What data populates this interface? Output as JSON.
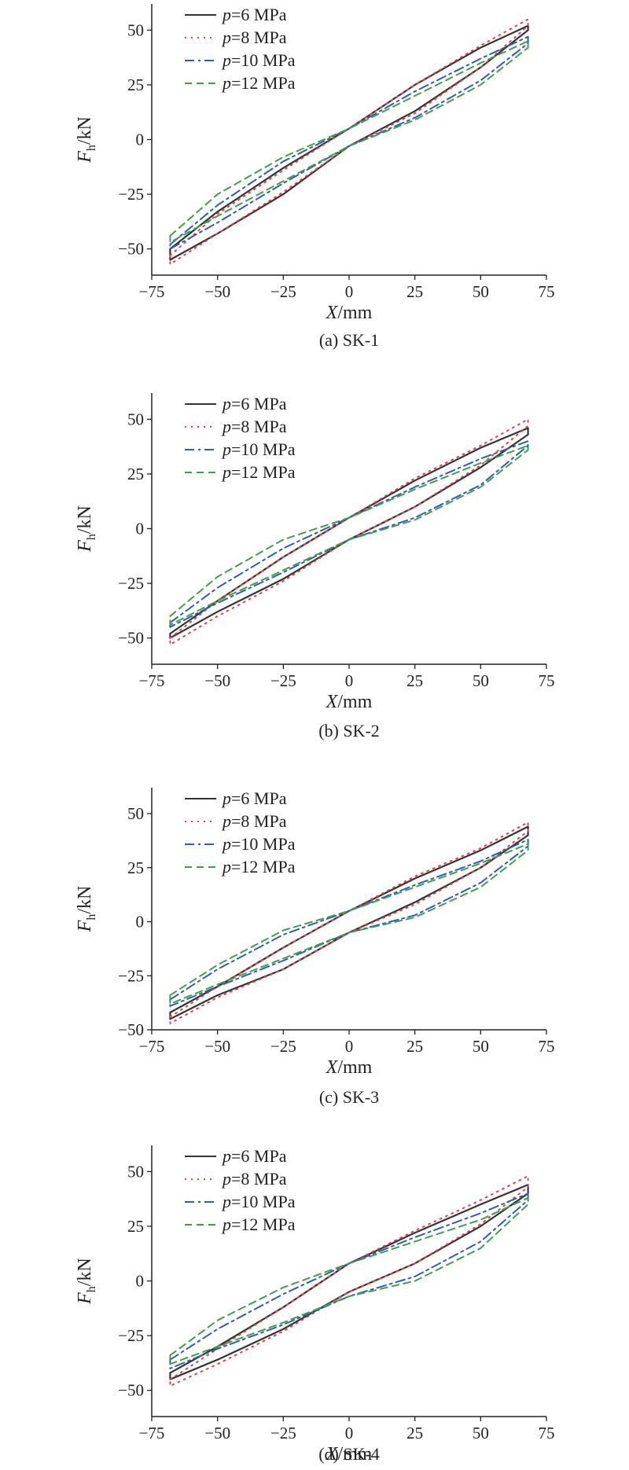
{
  "chart_data": [
    {
      "type": "line",
      "caption": "(a) SK-1",
      "xlabel": "X/mm",
      "ylabel": "F_h/kN",
      "xlim": [
        -75,
        75
      ],
      "ylim": [
        -62,
        62
      ],
      "xticks": [
        -75,
        -50,
        -25,
        0,
        25,
        50,
        75
      ],
      "yticks": [
        -50,
        -25,
        0,
        25,
        50
      ],
      "series": [
        {
          "name": "p=6 MPa",
          "color": "#333333",
          "dash": "solid",
          "upper_x": [
            -68,
            -50,
            -25,
            0,
            25,
            50,
            68
          ],
          "upper_y": [
            -50,
            -33,
            -13,
            5,
            25,
            42,
            52
          ],
          "lower_x": [
            68,
            50,
            25,
            0,
            -25,
            -50,
            -68
          ],
          "lower_y": [
            50,
            33,
            13,
            -3,
            -25,
            -43,
            -55
          ]
        },
        {
          "name": "p=8 MPa",
          "color": "#e8414d",
          "dash": "dotted",
          "upper_x": [
            -68,
            -50,
            -25,
            0,
            25,
            50,
            68
          ],
          "upper_y": [
            -53,
            -34,
            -14,
            5,
            25,
            43,
            55
          ],
          "lower_x": [
            68,
            50,
            25,
            0,
            -25,
            -50,
            -68
          ],
          "lower_y": [
            52,
            33,
            12,
            -3,
            -24,
            -43,
            -57
          ]
        },
        {
          "name": "p=10 MPa",
          "color": "#2f5fa7",
          "dash": "dashdot",
          "upper_x": [
            -68,
            -50,
            -25,
            0,
            25,
            50,
            68
          ],
          "upper_y": [
            -48,
            -30,
            -10,
            5,
            22,
            37,
            47
          ],
          "lower_x": [
            68,
            50,
            25,
            0,
            -25,
            -50,
            -68
          ],
          "lower_y": [
            44,
            27,
            10,
            -3,
            -20,
            -38,
            -50
          ]
        },
        {
          "name": "p=12 MPa",
          "color": "#3f9e4f",
          "dash": "dashed",
          "upper_x": [
            -68,
            -50,
            -25,
            0,
            25,
            50,
            68
          ],
          "upper_y": [
            -44,
            -25,
            -8,
            5,
            20,
            35,
            45
          ],
          "lower_x": [
            68,
            50,
            25,
            0,
            -25,
            -50,
            -68
          ],
          "lower_y": [
            42,
            25,
            9,
            -3,
            -19,
            -35,
            -47
          ]
        }
      ]
    },
    {
      "type": "line",
      "caption": "(b) SK-2",
      "xlabel": "X/mm",
      "ylabel": "F_h/kN",
      "xlim": [
        -75,
        75
      ],
      "ylim": [
        -62,
        62
      ],
      "xticks": [
        -75,
        -50,
        -25,
        0,
        25,
        50,
        75
      ],
      "yticks": [
        -50,
        -25,
        0,
        25,
        50
      ],
      "series": [
        {
          "name": "p=6 MPa",
          "color": "#333333",
          "dash": "solid",
          "upper_x": [
            -68,
            -50,
            -25,
            0,
            25,
            50,
            68
          ],
          "upper_y": [
            -48,
            -33,
            -13,
            5,
            22,
            37,
            46
          ],
          "lower_x": [
            68,
            50,
            25,
            0,
            -25,
            -50,
            -68
          ],
          "lower_y": [
            43,
            28,
            10,
            -5,
            -23,
            -38,
            -50
          ]
        },
        {
          "name": "p=8 MPa",
          "color": "#e8414d",
          "dash": "dotted",
          "upper_x": [
            -68,
            -50,
            -25,
            0,
            25,
            50,
            68
          ],
          "upper_y": [
            -50,
            -33,
            -13,
            5,
            23,
            38,
            50
          ],
          "lower_x": [
            68,
            50,
            25,
            0,
            -25,
            -50,
            -68
          ],
          "lower_y": [
            47,
            29,
            10,
            -5,
            -24,
            -40,
            -53
          ]
        },
        {
          "name": "p=10 MPa",
          "color": "#2f5fa7",
          "dash": "dashdot",
          "upper_x": [
            -68,
            -50,
            -25,
            0,
            25,
            50,
            68
          ],
          "upper_y": [
            -43,
            -27,
            -9,
            5,
            19,
            32,
            40
          ],
          "lower_x": [
            68,
            50,
            25,
            0,
            -25,
            -50,
            -68
          ],
          "lower_y": [
            38,
            20,
            5,
            -5,
            -20,
            -34,
            -45
          ]
        },
        {
          "name": "p=12 MPa",
          "color": "#3f9e4f",
          "dash": "dashed",
          "upper_x": [
            -68,
            -50,
            -25,
            0,
            25,
            50,
            68
          ],
          "upper_y": [
            -40,
            -22,
            -5,
            5,
            18,
            30,
            38
          ],
          "lower_x": [
            68,
            50,
            25,
            0,
            -25,
            -50,
            -68
          ],
          "lower_y": [
            36,
            19,
            4,
            -5,
            -19,
            -33,
            -44
          ]
        }
      ]
    },
    {
      "type": "line",
      "caption": "(c) SK-3",
      "xlabel": "X/mm",
      "ylabel": "F_h/kN",
      "xlim": [
        -75,
        75
      ],
      "ylim": [
        -50,
        62
      ],
      "xticks": [
        -75,
        -50,
        -25,
        0,
        25,
        50,
        75
      ],
      "yticks": [
        -50,
        -25,
        0,
        25,
        50
      ],
      "series": [
        {
          "name": "p=6 MPa",
          "color": "#333333",
          "dash": "solid",
          "upper_x": [
            -68,
            -50,
            -25,
            0,
            25,
            50,
            68
          ],
          "upper_y": [
            -42,
            -30,
            -12,
            5,
            20,
            33,
            44
          ],
          "lower_x": [
            68,
            50,
            25,
            0,
            -25,
            -50,
            -68
          ],
          "lower_y": [
            40,
            25,
            9,
            -5,
            -22,
            -34,
            -45
          ]
        },
        {
          "name": "p=8 MPa",
          "color": "#e8414d",
          "dash": "dotted",
          "upper_x": [
            -68,
            -50,
            -25,
            0,
            25,
            50,
            68
          ],
          "upper_y": [
            -44,
            -30,
            -12,
            5,
            21,
            34,
            46
          ],
          "lower_x": [
            68,
            50,
            25,
            0,
            -25,
            -50,
            -68
          ],
          "lower_y": [
            42,
            25,
            8,
            -5,
            -22,
            -35,
            -47
          ]
        },
        {
          "name": "p=10 MPa",
          "color": "#2f5fa7",
          "dash": "dashdot",
          "upper_x": [
            -68,
            -50,
            -25,
            0,
            25,
            50,
            68
          ],
          "upper_y": [
            -36,
            -22,
            -6,
            5,
            17,
            28,
            38
          ],
          "lower_x": [
            68,
            50,
            25,
            0,
            -25,
            -50,
            -68
          ],
          "lower_y": [
            35,
            18,
            3,
            -5,
            -18,
            -30,
            -39
          ]
        },
        {
          "name": "p=12 MPa",
          "color": "#3f9e4f",
          "dash": "dashed",
          "upper_x": [
            -68,
            -50,
            -25,
            0,
            25,
            50,
            68
          ],
          "upper_y": [
            -34,
            -20,
            -4,
            5,
            16,
            27,
            36
          ],
          "lower_x": [
            68,
            50,
            25,
            0,
            -25,
            -50,
            -68
          ],
          "lower_y": [
            33,
            16,
            2,
            -5,
            -17,
            -29,
            -38
          ]
        }
      ]
    },
    {
      "type": "line",
      "caption": "(d) SK-4",
      "xlabel": "X/mm",
      "ylabel": "F_h/kN",
      "xlim": [
        -75,
        75
      ],
      "ylim": [
        -62,
        62
      ],
      "xticks": [
        -75,
        -50,
        -25,
        0,
        25,
        50,
        75
      ],
      "yticks": [
        -50,
        -25,
        0,
        25,
        50
      ],
      "series": [
        {
          "name": "p=6 MPa",
          "color": "#333333",
          "dash": "solid",
          "upper_x": [
            -68,
            -50,
            -25,
            0,
            25,
            50,
            68
          ],
          "upper_y": [
            -42,
            -30,
            -12,
            8,
            22,
            35,
            44
          ],
          "lower_x": [
            68,
            50,
            25,
            0,
            -25,
            -50,
            -68
          ],
          "lower_y": [
            40,
            25,
            8,
            -5,
            -22,
            -36,
            -45
          ]
        },
        {
          "name": "p=8 MPa",
          "color": "#e8414d",
          "dash": "dotted",
          "upper_x": [
            -68,
            -50,
            -25,
            0,
            25,
            50,
            68
          ],
          "upper_y": [
            -45,
            -31,
            -12,
            8,
            23,
            37,
            48
          ],
          "lower_x": [
            68,
            50,
            25,
            0,
            -25,
            -50,
            -68
          ],
          "lower_y": [
            43,
            26,
            8,
            -5,
            -23,
            -38,
            -48
          ]
        },
        {
          "name": "p=10 MPa",
          "color": "#2f5fa7",
          "dash": "dashdot",
          "upper_x": [
            -68,
            -50,
            -25,
            0,
            25,
            50,
            68
          ],
          "upper_y": [
            -36,
            -22,
            -6,
            8,
            20,
            31,
            40
          ],
          "lower_x": [
            68,
            50,
            25,
            0,
            -25,
            -50,
            -68
          ],
          "lower_y": [
            37,
            18,
            2,
            -7,
            -20,
            -31,
            -40
          ]
        },
        {
          "name": "p=12 MPa",
          "color": "#3f9e4f",
          "dash": "dashed",
          "upper_x": [
            -68,
            -50,
            -25,
            0,
            25,
            50,
            68
          ],
          "upper_y": [
            -34,
            -18,
            -3,
            8,
            18,
            28,
            38
          ],
          "lower_x": [
            68,
            50,
            25,
            0,
            -25,
            -50,
            -68
          ],
          "lower_y": [
            35,
            15,
            0,
            -7,
            -19,
            -30,
            -38
          ]
        }
      ]
    }
  ]
}
